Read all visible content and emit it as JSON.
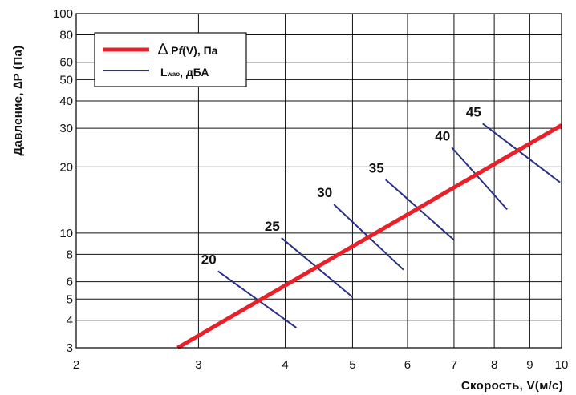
{
  "chart_data": {
    "type": "line",
    "xlabel": "Скорость, V(м/с)",
    "ylabel": "Давление, ∆P (Па)",
    "x_scale": "log",
    "y_scale": "log",
    "xlim": [
      2,
      10
    ],
    "ylim": [
      3,
      100
    ],
    "x_ticks": [
      2,
      3,
      4,
      5,
      6,
      7,
      8,
      9,
      10
    ],
    "x_tick_labels": [
      "2",
      "3",
      "4",
      "5",
      "6",
      "7",
      "8",
      "9",
      "10"
    ],
    "y_ticks": [
      3,
      4,
      5,
      6,
      8,
      10,
      20,
      30,
      40,
      50,
      60,
      80,
      100
    ],
    "y_tick_labels": [
      "3",
      "4",
      "5",
      "6",
      "8",
      "10",
      "20",
      "30",
      "40",
      "50",
      "60",
      "80",
      "100"
    ],
    "grid": true,
    "legend_position": "top-left",
    "legend": [
      {
        "symbol": "∆",
        "main": " P",
        "italic": "f",
        "rest": "(V), Па",
        "color": "#e8202a"
      },
      {
        "main": "L",
        "sub": "wao",
        "rest": ", дБА",
        "color": "#2b2f86"
      }
    ],
    "pressure_curve": {
      "name": "∆Pf(V), Па",
      "color": "#e8202a",
      "x": [
        2.8,
        10
      ],
      "y": [
        3,
        31
      ]
    },
    "sound_lines": {
      "name": "Lwao, дБА",
      "color": "#2b2f86",
      "lines": [
        {
          "label": "20",
          "x": [
            3.2,
            4.15
          ],
          "y": [
            6.7,
            3.7
          ]
        },
        {
          "label": "25",
          "x": [
            3.95,
            5.0
          ],
          "y": [
            9.5,
            5.1
          ]
        },
        {
          "label": "30",
          "x": [
            4.7,
            5.92
          ],
          "y": [
            13.5,
            6.8
          ]
        },
        {
          "label": "35",
          "x": [
            5.58,
            7.0
          ],
          "y": [
            17.5,
            9.3
          ]
        },
        {
          "label": "40",
          "x": [
            6.95,
            8.35
          ],
          "y": [
            24.5,
            12.8
          ]
        },
        {
          "label": "45",
          "x": [
            7.7,
            9.95
          ],
          "y": [
            31.5,
            17.0
          ]
        }
      ]
    }
  }
}
